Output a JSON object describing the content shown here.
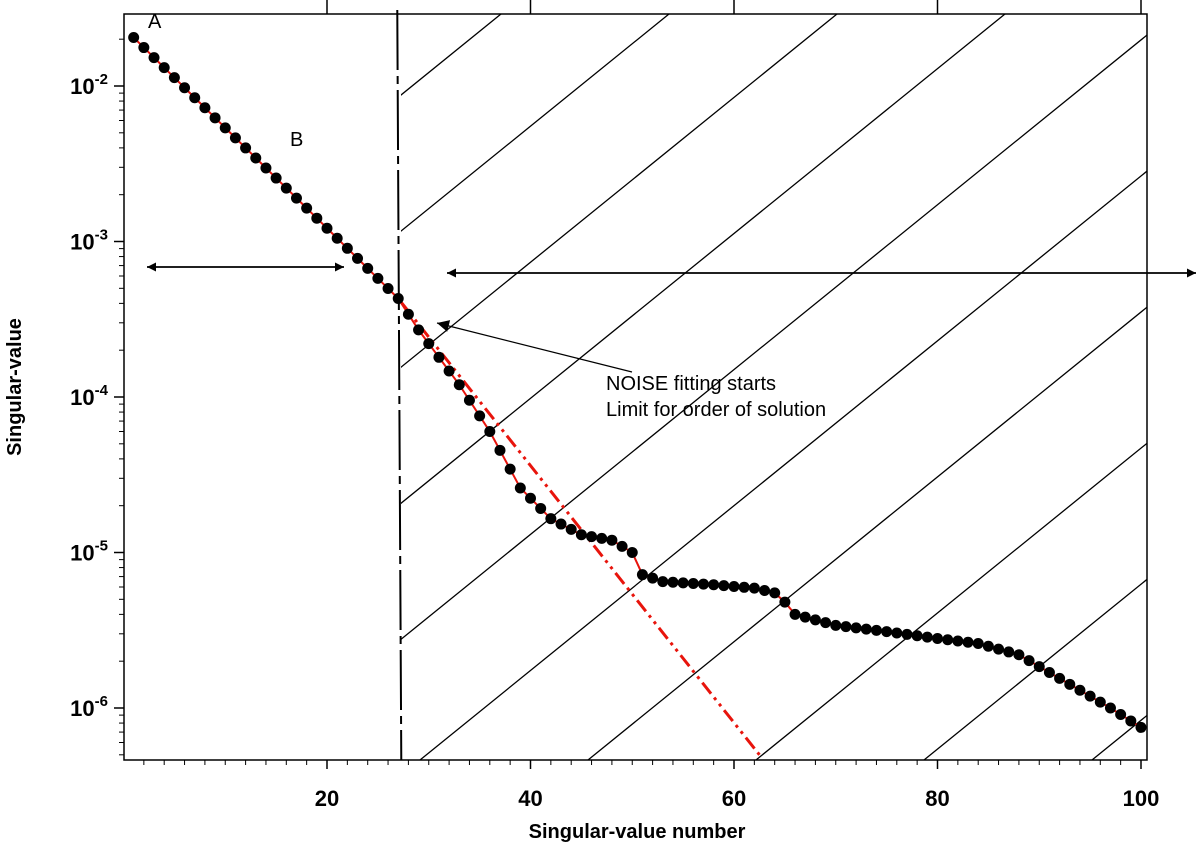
{
  "chart_data": {
    "type": "scatter",
    "title": "",
    "xlabel": "Singular-value number",
    "ylabel": "Singular-value",
    "xlim": [
      0,
      100
    ],
    "ylim": [
      4.5e-07,
      0.03
    ],
    "yscale": "log",
    "grid": false,
    "x_ticks": [
      20,
      40,
      60,
      80,
      100
    ],
    "x_tick_labels": [
      "20",
      "40",
      "60",
      "80",
      "100"
    ],
    "y_ticks": [
      {
        "value": 0.01,
        "base": "10",
        "exp": "-2"
      },
      {
        "value": 0.001,
        "base": "10",
        "exp": "-3"
      },
      {
        "value": 0.0001,
        "base": "10",
        "exp": "-4"
      },
      {
        "value": 1e-05,
        "base": "10",
        "exp": "-5"
      },
      {
        "value": 1e-06,
        "base": "10",
        "exp": "-6"
      }
    ],
    "series": [
      {
        "kind": "points-with-line",
        "color": "#000000",
        "line_color": "#e8140c",
        "knots": [
          [
            1,
            0.0205
          ],
          [
            27,
            0.00043
          ],
          [
            29,
            0.00027
          ],
          [
            33,
            0.00012
          ],
          [
            36,
            6e-05
          ],
          [
            39,
            2.6e-05
          ],
          [
            42,
            1.65e-05
          ],
          [
            45,
            1.3e-05
          ],
          [
            48,
            1.2e-05
          ],
          [
            50,
            1e-05
          ],
          [
            51,
            7.2e-06
          ],
          [
            53,
            6.5e-06
          ],
          [
            58,
            6.2e-06
          ],
          [
            62,
            5.9e-06
          ],
          [
            64,
            5.5e-06
          ],
          [
            65,
            4.8e-06
          ],
          [
            66,
            4e-06
          ],
          [
            70,
            3.4e-06
          ],
          [
            75,
            3.1e-06
          ],
          [
            80,
            2.8e-06
          ],
          [
            84,
            2.6e-06
          ],
          [
            88,
            2.2e-06
          ],
          [
            92,
            1.55e-06
          ],
          [
            97,
            1e-06
          ],
          [
            100,
            7.5e-07
          ]
        ]
      },
      {
        "kind": "dash-dot-extrapolation",
        "color": "#e8140c",
        "points": [
          [
            27,
            0.00043
          ],
          [
            62.5,
            5e-07
          ]
        ]
      }
    ],
    "annotations": {
      "label_a": "A",
      "label_b": "B",
      "noise_line1": "NOISE fitting starts",
      "noise_line2": "Limit for order of solution"
    },
    "vertical_marker_x": 27.3,
    "hatched_region_x_start": 27.3
  }
}
